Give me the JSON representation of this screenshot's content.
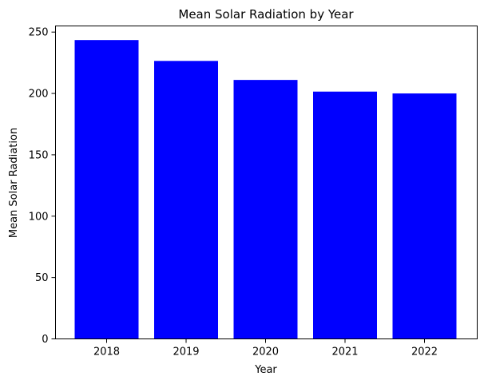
{
  "chart_data": {
    "type": "bar",
    "title": "Mean Solar Radiation by Year",
    "xlabel": "Year",
    "ylabel": "Mean Solar Radiation",
    "categories": [
      "2018",
      "2019",
      "2020",
      "2021",
      "2022"
    ],
    "values": [
      243.5,
      226.5,
      211,
      201.5,
      200
    ],
    "ylim": [
      0,
      255
    ],
    "yticks": [
      0,
      50,
      100,
      150,
      200,
      250
    ],
    "bar_color": "#0000ff",
    "grid": false,
    "legend": "none"
  }
}
